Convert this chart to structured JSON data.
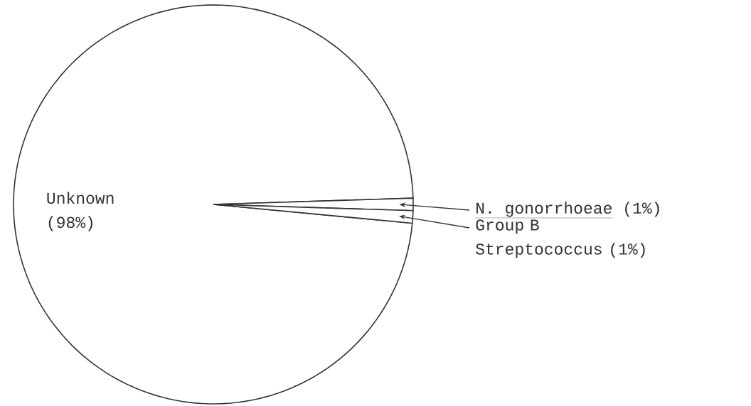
{
  "chart_data": {
    "type": "pie",
    "categories": [
      "Unknown",
      "N. gonorrhoeae",
      "Group B Streptococcus"
    ],
    "values": [
      98,
      1,
      1
    ],
    "colors": [
      "#ffffff",
      "#ffffff",
      "#ffffff"
    ],
    "value_labels": [
      "(98%)",
      "(1%)",
      "(1%)"
    ]
  }
}
